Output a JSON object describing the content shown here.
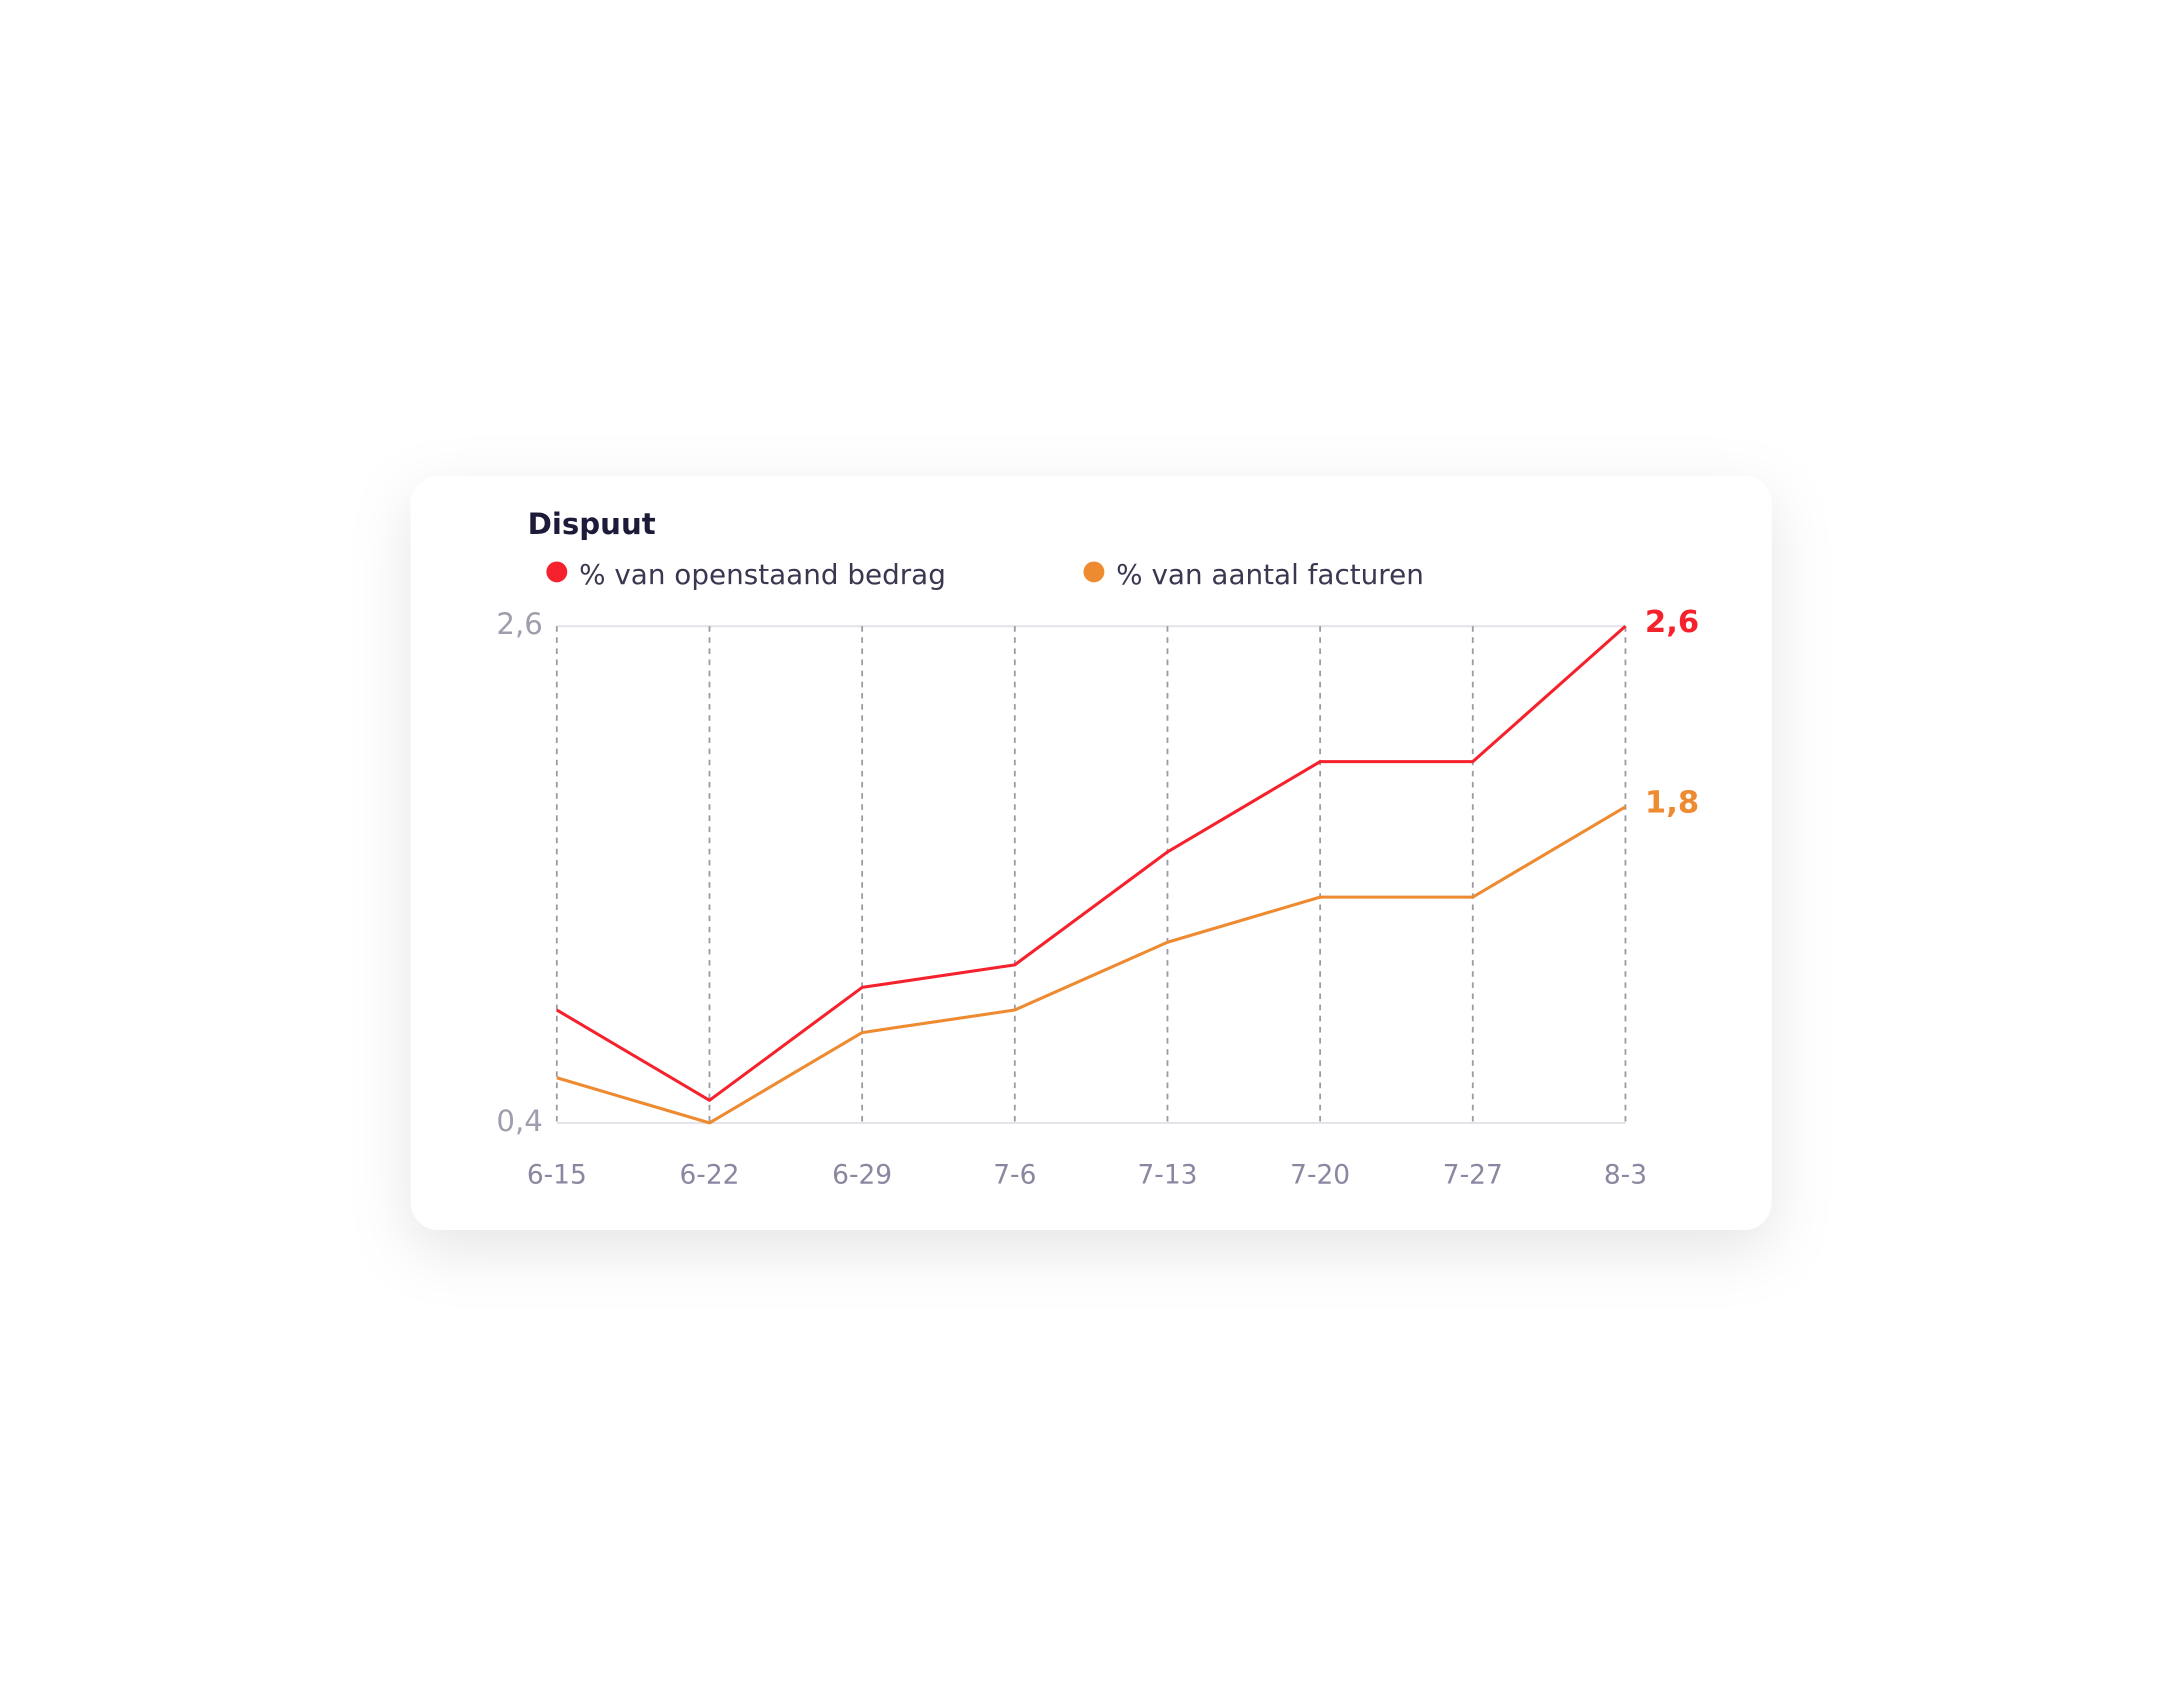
{
  "chart_data": {
    "type": "line",
    "title": "Dispuut",
    "categories": [
      "6-15",
      "6-22",
      "6-29",
      "7-6",
      "7-13",
      "7-20",
      "7-27",
      "8-3"
    ],
    "series": [
      {
        "name": "% van openstaand bedrag",
        "color": "#f5222d",
        "values": [
          0.9,
          0.5,
          1.0,
          1.1,
          1.6,
          2.0,
          2.0,
          2.6
        ],
        "value_labels": [
          null,
          null,
          null,
          null,
          null,
          null,
          null,
          "2,6"
        ]
      },
      {
        "name": "% van aantal facturen",
        "color": "#ee8a30",
        "values": [
          0.6,
          0.4,
          0.8,
          0.9,
          1.2,
          1.4,
          1.4,
          1.8
        ],
        "value_labels": [
          null,
          null,
          null,
          null,
          null,
          null,
          null,
          "1,8"
        ]
      }
    ],
    "ylim": [
      0.4,
      2.6
    ],
    "yticks": [
      {
        "value": 0.4,
        "label": "0,4"
      },
      {
        "value": 2.6,
        "label": "2,6"
      }
    ],
    "grid": true,
    "legend": "top-left"
  }
}
